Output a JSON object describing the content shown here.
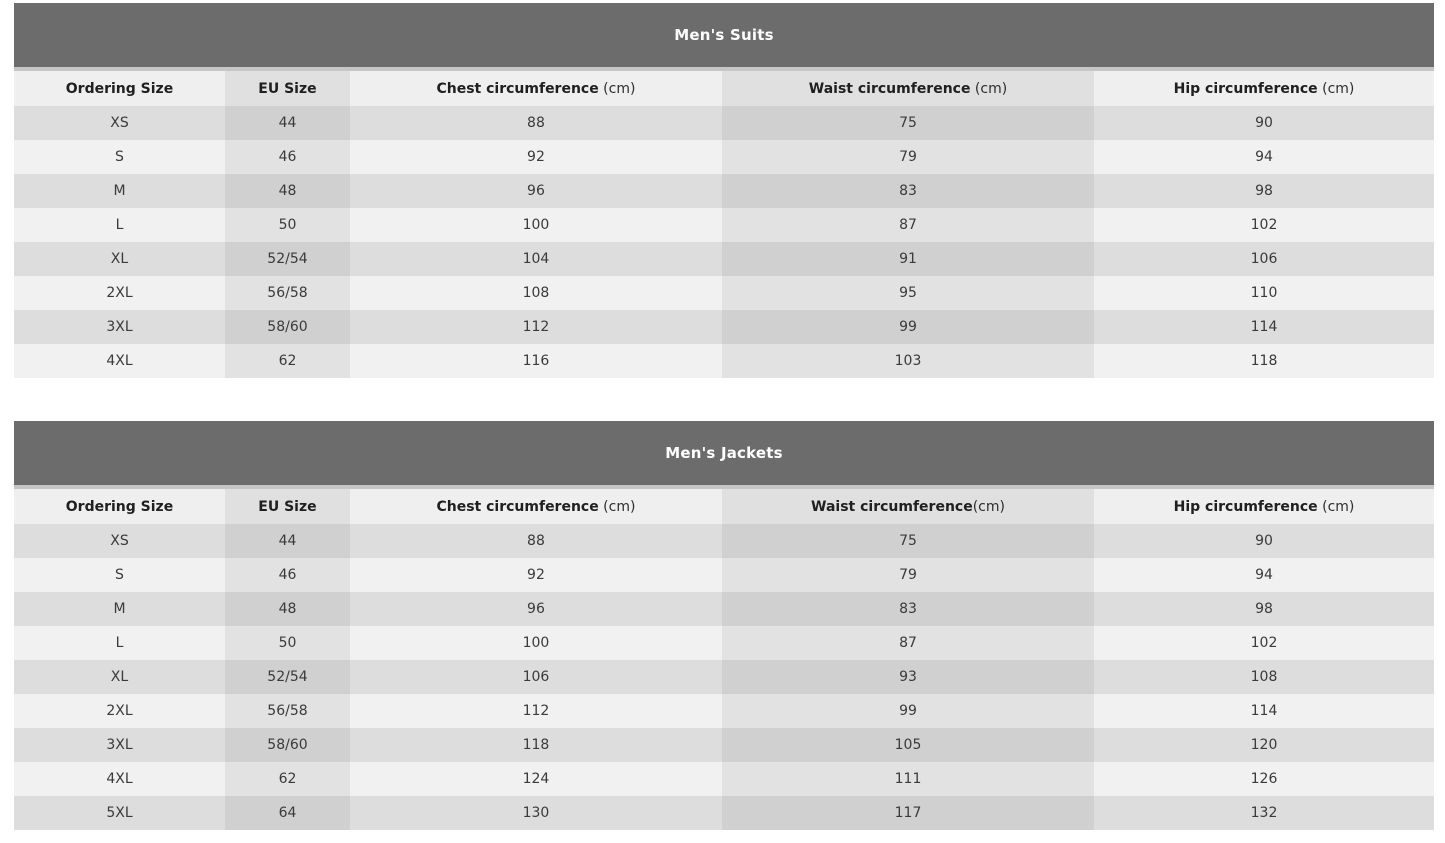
{
  "colors": {
    "title_band": "#6c6c6c",
    "band_bottom_strip": "#c6c6c6",
    "header_row": "#efefef",
    "row_stripe_dark": "#dddddd",
    "row_stripe_light": "#f1f1f1",
    "column_band_overlay": "rgba(0,0,0,0.057)",
    "title_text": "#ffffff",
    "body_text": "#3a3a3a"
  },
  "tables": [
    {
      "title": "Men's Suits",
      "columns": [
        {
          "label": "Ordering Size",
          "unit": ""
        },
        {
          "label": "EU Size",
          "unit": ""
        },
        {
          "label": "Chest circumference",
          "unit": " (cm)"
        },
        {
          "label": "Waist circumference",
          "unit": " (cm)"
        },
        {
          "label": "Hip circumference",
          "unit": " (cm)"
        }
      ],
      "rows": [
        [
          "XS",
          "44",
          "88",
          "75",
          "90"
        ],
        [
          "S",
          "46",
          "92",
          "79",
          "94"
        ],
        [
          "M",
          "48",
          "96",
          "83",
          "98"
        ],
        [
          "L",
          "50",
          "100",
          "87",
          "102"
        ],
        [
          "XL",
          "52/54",
          "104",
          "91",
          "106"
        ],
        [
          "2XL",
          "56/58",
          "108",
          "95",
          "110"
        ],
        [
          "3XL",
          "58/60",
          "112",
          "99",
          "114"
        ],
        [
          "4XL",
          "62",
          "116",
          "103",
          "118"
        ]
      ]
    },
    {
      "title": "Men's Jackets",
      "columns": [
        {
          "label": "Ordering Size",
          "unit": ""
        },
        {
          "label": "EU Size",
          "unit": ""
        },
        {
          "label": "Chest circumference",
          "unit": " (cm)"
        },
        {
          "label": "Waist circumference",
          "unit": "(cm)"
        },
        {
          "label": "Hip circumference",
          "unit": " (cm)"
        }
      ],
      "rows": [
        [
          "XS",
          "44",
          "88",
          "75",
          "90"
        ],
        [
          "S",
          "46",
          "92",
          "79",
          "94"
        ],
        [
          "M",
          "48",
          "96",
          "83",
          "98"
        ],
        [
          "L",
          "50",
          "100",
          "87",
          "102"
        ],
        [
          "XL",
          "52/54",
          "106",
          "93",
          "108"
        ],
        [
          "2XL",
          "56/58",
          "112",
          "99",
          "114"
        ],
        [
          "3XL",
          "58/60",
          "118",
          "105",
          "120"
        ],
        [
          "4XL",
          "62",
          "124",
          "111",
          "126"
        ],
        [
          "5XL",
          "64",
          "130",
          "117",
          "132"
        ]
      ]
    }
  ]
}
